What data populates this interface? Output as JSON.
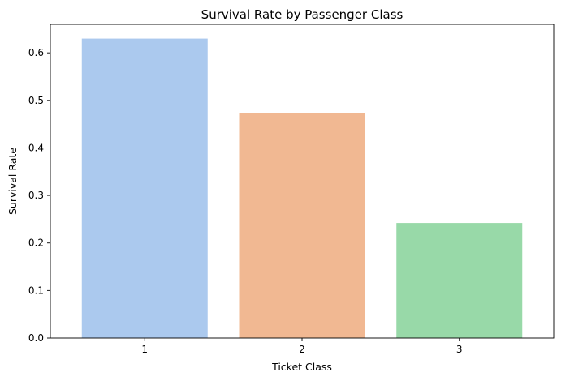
{
  "chart_data": {
    "type": "bar",
    "title": "Survival Rate by Passenger Class",
    "xlabel": "Ticket Class",
    "ylabel": "Survival Rate",
    "categories": [
      "1",
      "2",
      "3"
    ],
    "values": [
      0.63,
      0.473,
      0.242
    ],
    "colors": [
      "#abc9ee",
      "#f1b892",
      "#98d9a8"
    ],
    "ylim": [
      0,
      0.66
    ],
    "yticks": [
      0.0,
      0.1,
      0.2,
      0.3,
      0.4,
      0.5,
      0.6
    ],
    "ytick_labels": [
      "0.0",
      "0.1",
      "0.2",
      "0.3",
      "0.4",
      "0.5",
      "0.6"
    ],
    "grid": false,
    "legend": "none"
  }
}
